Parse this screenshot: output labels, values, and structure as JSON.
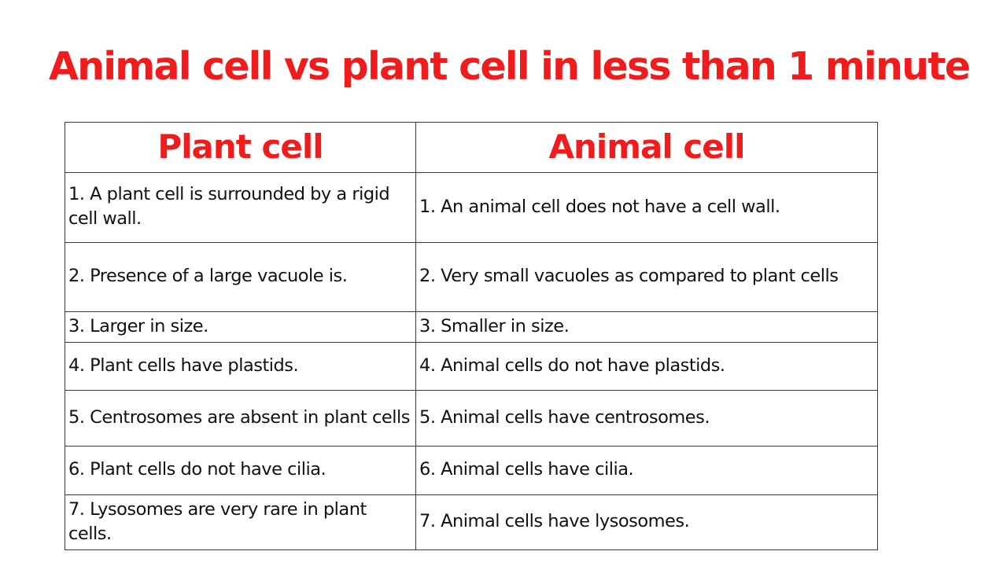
{
  "title": "Animal cell vs plant cell in less than 1 minute",
  "colors": {
    "accent": "#ee1c1c",
    "text": "#111111",
    "border": "#3a3a3a",
    "background": "#ffffff"
  },
  "table": {
    "headers": [
      "Plant cell",
      "Animal cell"
    ],
    "rows": [
      [
        "1. A plant cell is surrounded by a rigid cell wall.",
        "1. An animal cell does not have a cell wall."
      ],
      [
        "2. Presence of a large vacuole is.",
        "2. Very small vacuoles as compared to plant cells"
      ],
      [
        "3. Larger in size.",
        "3. Smaller in size."
      ],
      [
        "4. Plant cells have plastids.",
        "4. Animal cells do not have plastids."
      ],
      [
        "5. Centrosomes are absent in plant cells",
        "5. Animal cells have centrosomes."
      ],
      [
        "6. Plant cells do not have cilia.",
        "6. Animal cells have cilia."
      ],
      [
        "7. Lysosomes are very rare in plant cells.",
        "7. Animal cells have lysosomes."
      ]
    ]
  }
}
